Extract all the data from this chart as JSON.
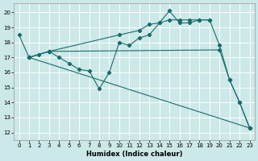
{
  "xlabel": "Humidex (Indice chaleur)",
  "background_color": "#cce8e8",
  "grid_color": "#ffffff",
  "line_color": "#1a6b6b",
  "xlim": [
    -0.5,
    23.5
  ],
  "ylim": [
    11.5,
    20.6
  ],
  "yticks": [
    12,
    13,
    14,
    15,
    16,
    17,
    18,
    19,
    20
  ],
  "xticks": [
    0,
    1,
    2,
    3,
    4,
    5,
    6,
    7,
    8,
    9,
    10,
    11,
    12,
    13,
    14,
    15,
    16,
    17,
    18,
    19,
    20,
    21,
    22,
    23
  ],
  "lines": [
    {
      "x": [
        0,
        1,
        2,
        3,
        4,
        5,
        6,
        7,
        8,
        9,
        10,
        11,
        12,
        13,
        14,
        15,
        16,
        17,
        18,
        19,
        20,
        21,
        22,
        23
      ],
      "y": [
        18.5,
        17.0,
        17.2,
        17.4,
        17.0,
        16.6,
        16.2,
        16.1,
        14.9,
        16.0,
        18.0,
        17.8,
        18.3,
        18.5,
        19.3,
        20.1,
        19.3,
        19.3,
        19.5,
        19.5,
        17.8,
        15.5,
        14.0,
        12.3
      ]
    },
    {
      "x": [
        1,
        3,
        20,
        21,
        22,
        23
      ],
      "y": [
        17.0,
        17.4,
        17.5,
        15.5,
        14.0,
        12.3
      ]
    },
    {
      "x": [
        1,
        3,
        10,
        12,
        13,
        14,
        15,
        16,
        17,
        18,
        19
      ],
      "y": [
        17.0,
        17.4,
        18.5,
        18.8,
        19.2,
        19.3,
        19.5,
        19.5,
        19.5,
        19.5,
        19.5
      ]
    },
    {
      "x": [
        1,
        23
      ],
      "y": [
        17.0,
        12.3
      ]
    }
  ]
}
